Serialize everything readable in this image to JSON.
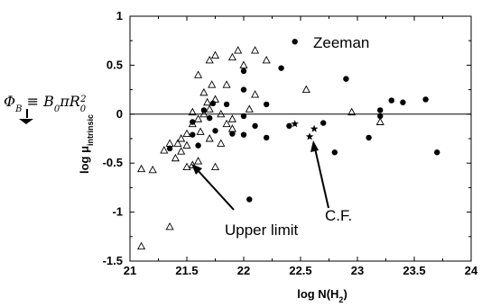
{
  "chart_data": {
    "type": "scatter",
    "xlabel_main": "log N(H",
    "xlabel_sub": "2",
    "xlabel_end": ")",
    "ylabel_main": "log μ",
    "ylabel_sub": "intrinsic",
    "xlim": [
      21,
      24
    ],
    "ylim": [
      -1.5,
      1
    ],
    "xticks": [
      21,
      21.5,
      22,
      22.5,
      23,
      23.5,
      24
    ],
    "xtick_labels": [
      "21",
      "21.5",
      "22",
      "22.5",
      "23",
      "23.5",
      "24"
    ],
    "yticks": [
      -1.5,
      -1,
      -0.5,
      0,
      0.5,
      1
    ],
    "ytick_labels": [
      "-1.5",
      "-1",
      "-0.5",
      "0",
      "0.5",
      "1"
    ],
    "reference_line_y": 0,
    "annotations": {
      "zeeman": "Zeeman",
      "upper_limit": "Upper limit",
      "cf": "C.F.",
      "formula": "Φ_B ≡ B_0 π R_0^2"
    },
    "series": [
      {
        "marker": "filled-circle",
        "points": [
          [
            22.45,
            0.74
          ],
          [
            22.33,
            0.47
          ],
          [
            22.0,
            0.44
          ],
          [
            22.0,
            0.25
          ],
          [
            22.9,
            0.36
          ],
          [
            21.73,
            0.11
          ],
          [
            21.85,
            0.1
          ],
          [
            22.2,
            0.1
          ],
          [
            21.65,
            0.04
          ],
          [
            21.7,
            -0.04
          ],
          [
            22.0,
            -0.02
          ],
          [
            21.55,
            -0.08
          ],
          [
            22.1,
            -0.12
          ],
          [
            22.4,
            -0.12
          ],
          [
            21.75,
            -0.17
          ],
          [
            21.9,
            -0.2
          ],
          [
            22.0,
            -0.21
          ],
          [
            21.55,
            -0.21
          ],
          [
            22.2,
            -0.24
          ],
          [
            21.6,
            -0.32
          ],
          [
            21.35,
            -0.35
          ],
          [
            22.8,
            -0.39
          ],
          [
            22.05,
            -0.87
          ],
          [
            23.1,
            -0.24
          ],
          [
            23.2,
            0.04
          ],
          [
            23.2,
            -0.02
          ],
          [
            23.3,
            0.14
          ],
          [
            23.4,
            0.12
          ],
          [
            23.6,
            0.15
          ],
          [
            23.7,
            -0.39
          ],
          [
            22.7,
            -0.09
          ]
        ]
      },
      {
        "marker": "open-triangle",
        "points": [
          [
            21.1,
            -1.35
          ],
          [
            21.35,
            -1.15
          ],
          [
            21.1,
            -0.56
          ],
          [
            21.2,
            -0.57
          ],
          [
            21.5,
            -0.54
          ],
          [
            21.55,
            -0.52
          ],
          [
            21.6,
            -0.48
          ],
          [
            21.75,
            -0.54
          ],
          [
            21.3,
            -0.37
          ],
          [
            21.35,
            -0.3
          ],
          [
            21.42,
            -0.3
          ],
          [
            21.4,
            -0.45
          ],
          [
            21.45,
            -0.25
          ],
          [
            21.5,
            -0.2
          ],
          [
            21.55,
            -0.1
          ],
          [
            21.6,
            -0.05
          ],
          [
            21.65,
            0.0
          ],
          [
            21.7,
            0.05
          ],
          [
            21.75,
            0.15
          ],
          [
            21.65,
            0.22
          ],
          [
            21.72,
            0.3
          ],
          [
            21.6,
            0.4
          ],
          [
            21.7,
            0.55
          ],
          [
            21.75,
            0.6
          ],
          [
            21.9,
            0.58
          ],
          [
            21.95,
            0.65
          ],
          [
            21.85,
            0.3
          ],
          [
            21.8,
            0.0
          ],
          [
            21.85,
            -0.1
          ],
          [
            21.9,
            -0.15
          ],
          [
            21.8,
            -0.3
          ],
          [
            21.7,
            -0.25
          ],
          [
            21.62,
            -0.18
          ],
          [
            21.5,
            -0.32
          ],
          [
            21.45,
            -0.38
          ],
          [
            22.1,
            0.2
          ],
          [
            22.0,
            0.5
          ],
          [
            22.1,
            0.65
          ],
          [
            22.2,
            0.55
          ],
          [
            22.55,
            0.25
          ],
          [
            22.95,
            0.02
          ],
          [
            23.2,
            -0.08
          ],
          [
            21.9,
            -0.05
          ],
          [
            22.05,
            0.05
          ],
          [
            21.55,
            0.02
          ],
          [
            21.68,
            0.12
          ]
        ]
      },
      {
        "marker": "star",
        "points": [
          [
            22.45,
            -0.1
          ],
          [
            22.62,
            -0.15
          ],
          [
            22.58,
            -0.23
          ]
        ]
      }
    ]
  }
}
